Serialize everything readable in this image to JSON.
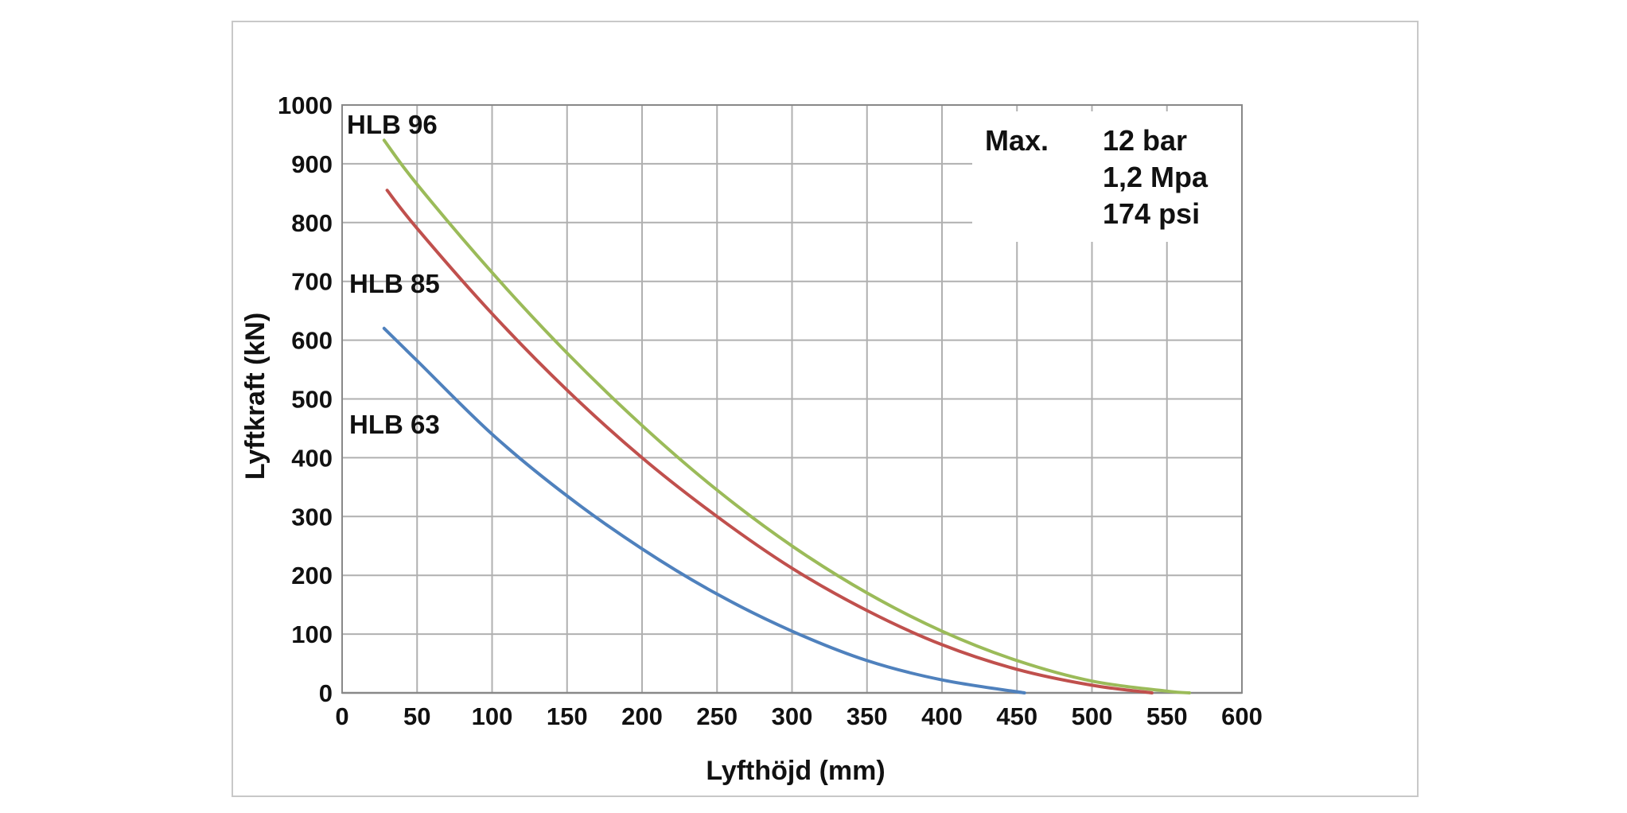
{
  "chart_data": {
    "type": "line",
    "title": "",
    "xlabel": "Lyfthöjd (mm)",
    "ylabel": "Lyftkraft (kN)",
    "xlim": [
      0,
      600
    ],
    "ylim": [
      0,
      1000
    ],
    "x_ticks": [
      "0",
      "50",
      "100",
      "150",
      "200",
      "250",
      "300",
      "350",
      "400",
      "450",
      "500",
      "550",
      "600"
    ],
    "y_ticks": [
      "0",
      "100",
      "200",
      "300",
      "400",
      "500",
      "600",
      "700",
      "800",
      "900",
      "1000"
    ],
    "grid": true,
    "series": [
      {
        "name": "HLB 96",
        "color": "#9bbb59",
        "x": [
          28,
          50,
          100,
          150,
          200,
          250,
          300,
          350,
          400,
          450,
          500,
          550,
          565
        ],
        "y": [
          940,
          865,
          715,
          578,
          455,
          345,
          250,
          170,
          105,
          55,
          20,
          3,
          0
        ]
      },
      {
        "name": "HLB 85",
        "color": "#c0504d",
        "x": [
          30,
          50,
          100,
          150,
          200,
          250,
          300,
          350,
          400,
          450,
          500,
          540
        ],
        "y": [
          855,
          790,
          645,
          515,
          400,
          300,
          212,
          140,
          82,
          40,
          13,
          0
        ]
      },
      {
        "name": "HLB 63",
        "color": "#4f81bd",
        "x": [
          28,
          50,
          100,
          150,
          200,
          250,
          300,
          350,
          400,
          455
        ],
        "y": [
          620,
          565,
          440,
          335,
          245,
          168,
          105,
          55,
          22,
          0
        ]
      }
    ],
    "annotation": {
      "label": "Max.",
      "lines": [
        "12 bar",
        "1,2 Mpa",
        "174 psi"
      ]
    }
  }
}
